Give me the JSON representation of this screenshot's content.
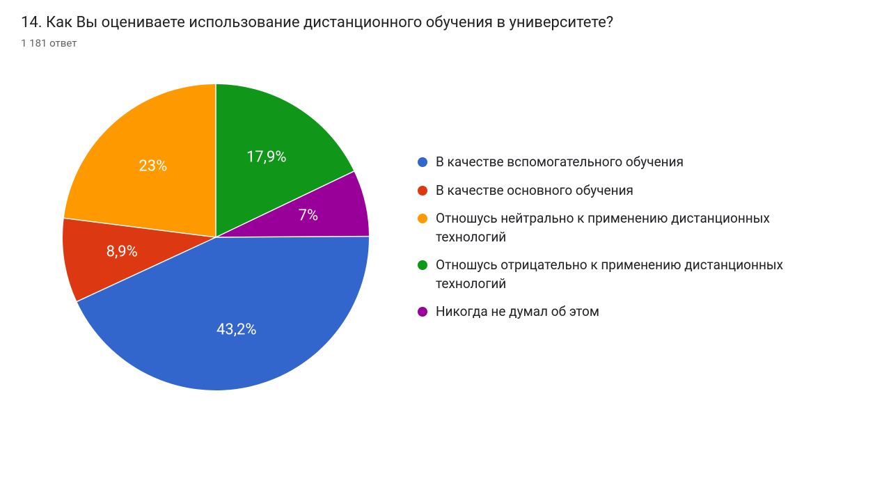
{
  "title": "14. Как Вы оцениваете использование дистанционного обучения в университете?",
  "subtitle": "1 181 ответ",
  "chart": {
    "type": "pie",
    "background_color": "#ffffff",
    "label_color": "#ffffff",
    "label_fontsize": 22,
    "legend_fontsize": 19,
    "slices": [
      {
        "label": "В качестве вспомогательного обучения",
        "value": 43.2,
        "display": "43,2%",
        "color": "#3366cc"
      },
      {
        "label": "В качестве основного обучения",
        "value": 8.9,
        "display": "8,9%",
        "color": "#dc3912"
      },
      {
        "label": "Отношусь нейтрально к применению дистанционных технологий",
        "value": 23.0,
        "display": "23%",
        "color": "#ff9900"
      },
      {
        "label": "Отношусь отрицательно к применению дистанционных технологий",
        "value": 17.9,
        "display": "17,9%",
        "color": "#109618"
      },
      {
        "label": "Никогда не думал об этом",
        "value": 7.0,
        "display": "7%",
        "color": "#990099"
      }
    ]
  }
}
